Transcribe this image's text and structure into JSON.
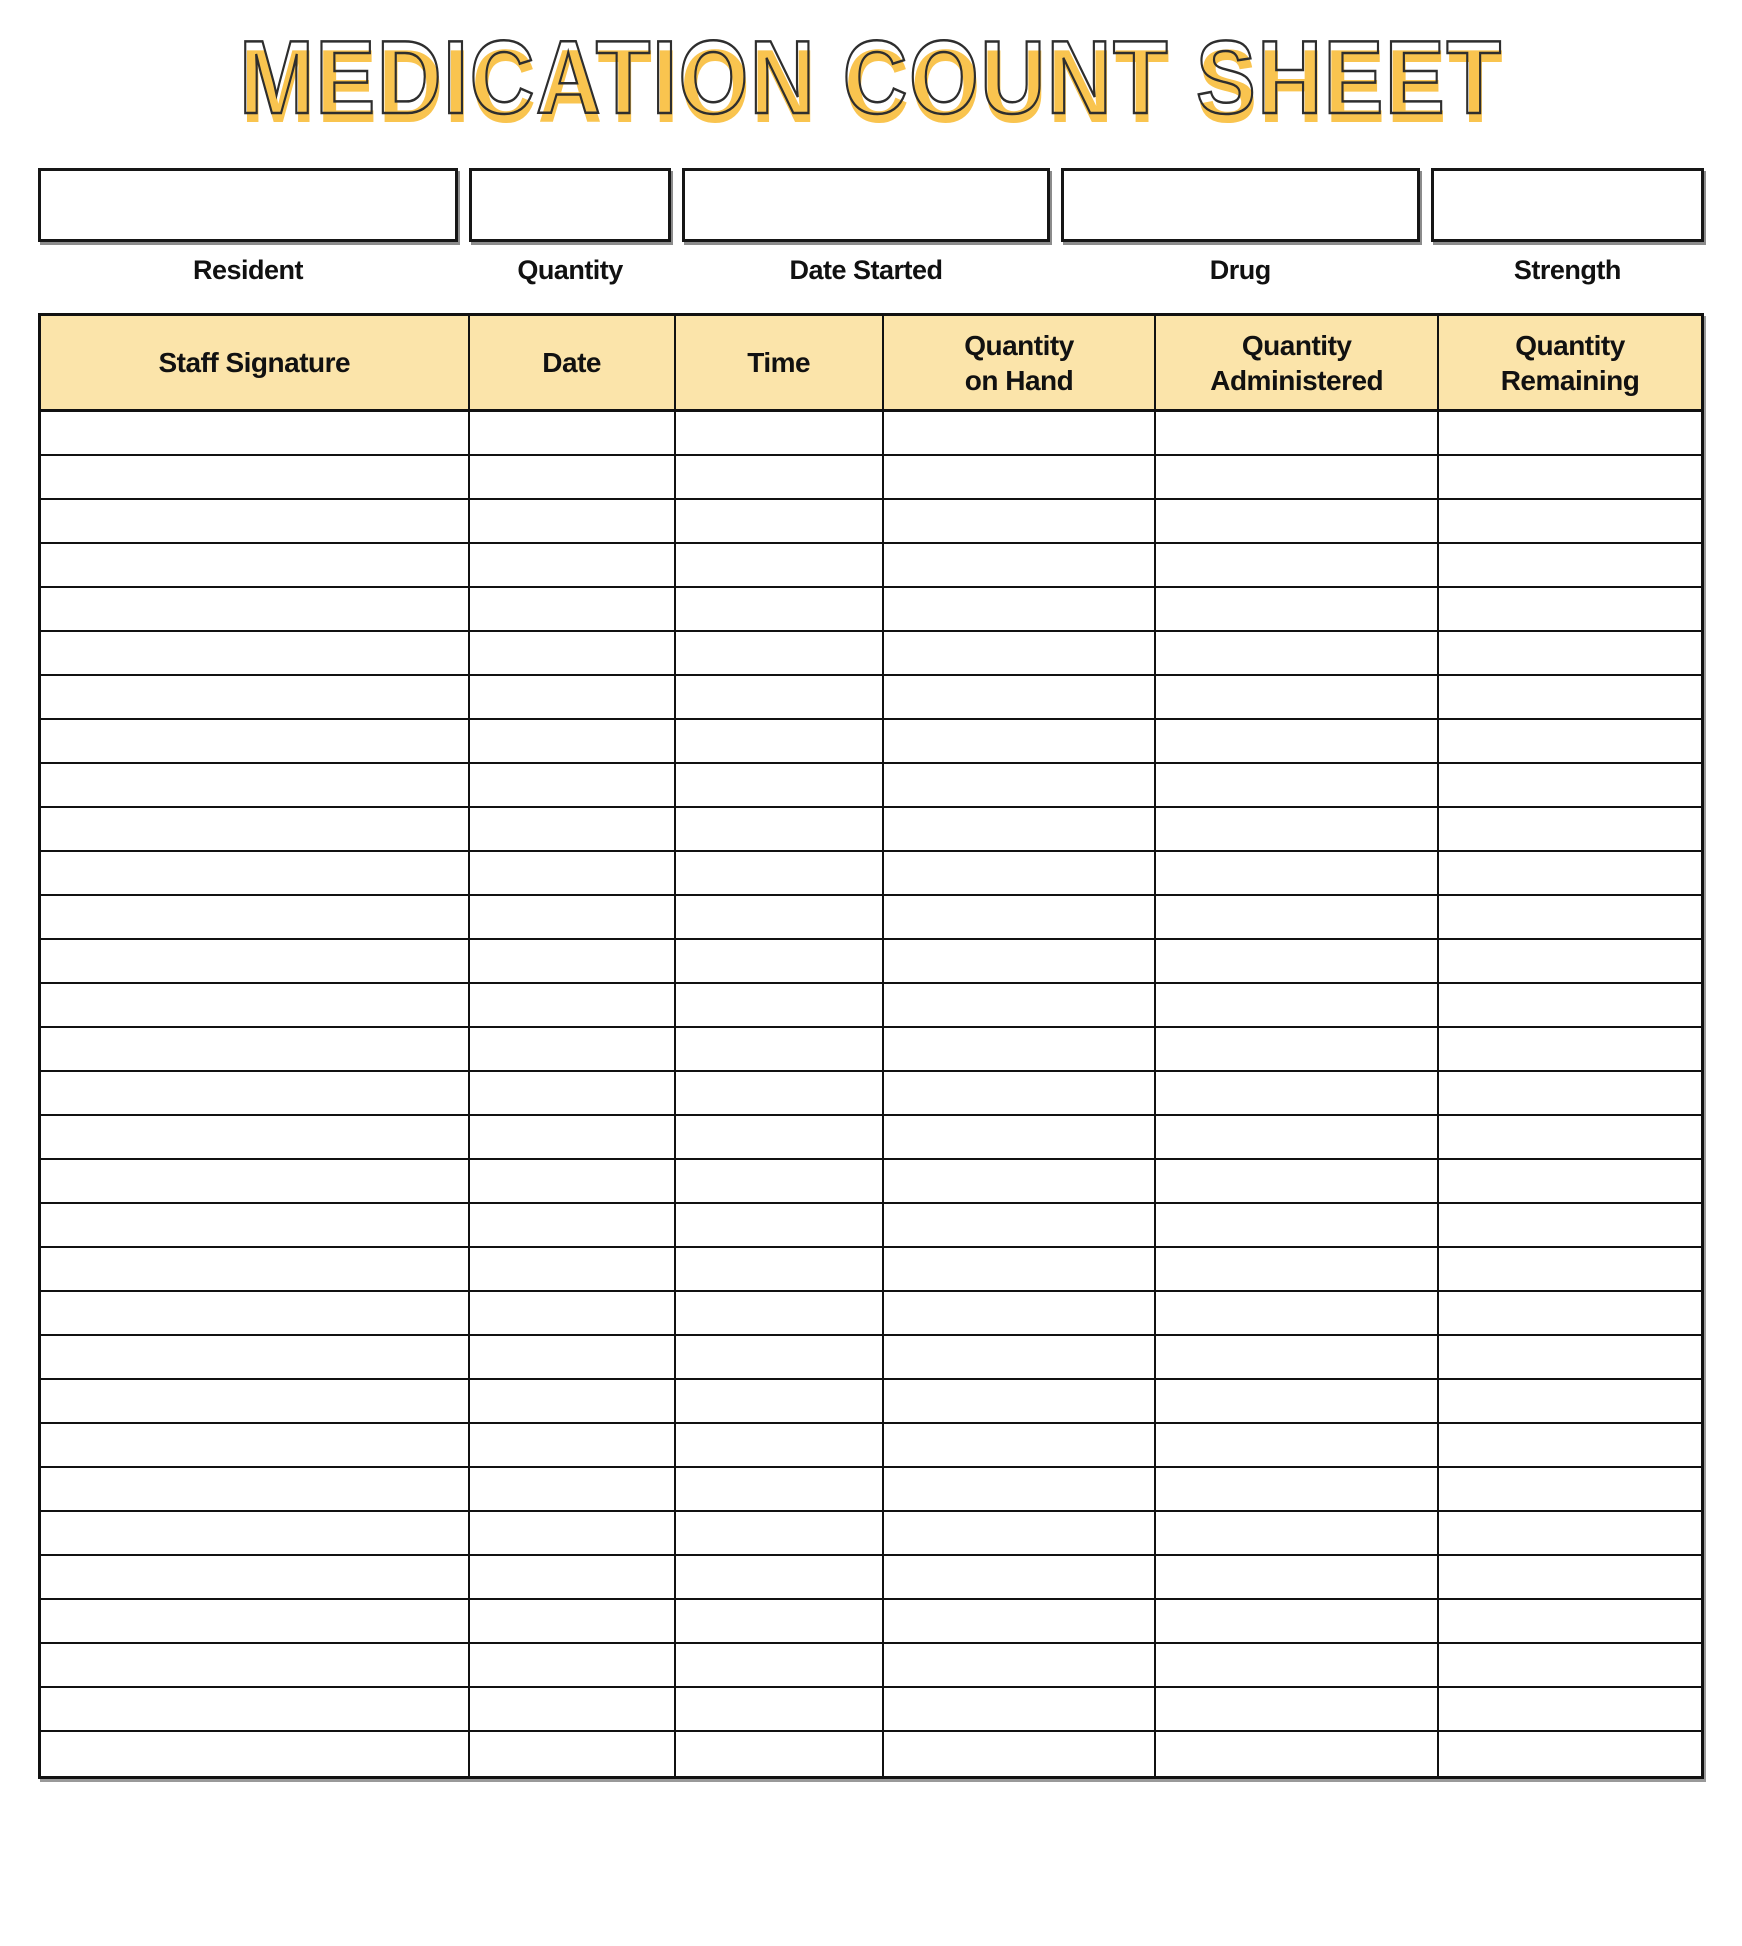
{
  "title": "MEDICATION COUNT SHEET",
  "colors": {
    "title_fill": "#F9C44F",
    "title_outline": "#2e2e2e",
    "table_header_bg": "#FBE4AA",
    "border": "#111111"
  },
  "fields": [
    {
      "label": "Resident",
      "value": ""
    },
    {
      "label": "Quantity",
      "value": ""
    },
    {
      "label": "Date Started",
      "value": ""
    },
    {
      "label": "Drug",
      "value": ""
    },
    {
      "label": "Strength",
      "value": ""
    }
  ],
  "table": {
    "columns": [
      "Staff Signature",
      "Date",
      "Time",
      "Quantity\non Hand",
      "Quantity\nAdministered",
      "Quantity\nRemaining"
    ],
    "row_count": 31,
    "rows_empty": true
  }
}
